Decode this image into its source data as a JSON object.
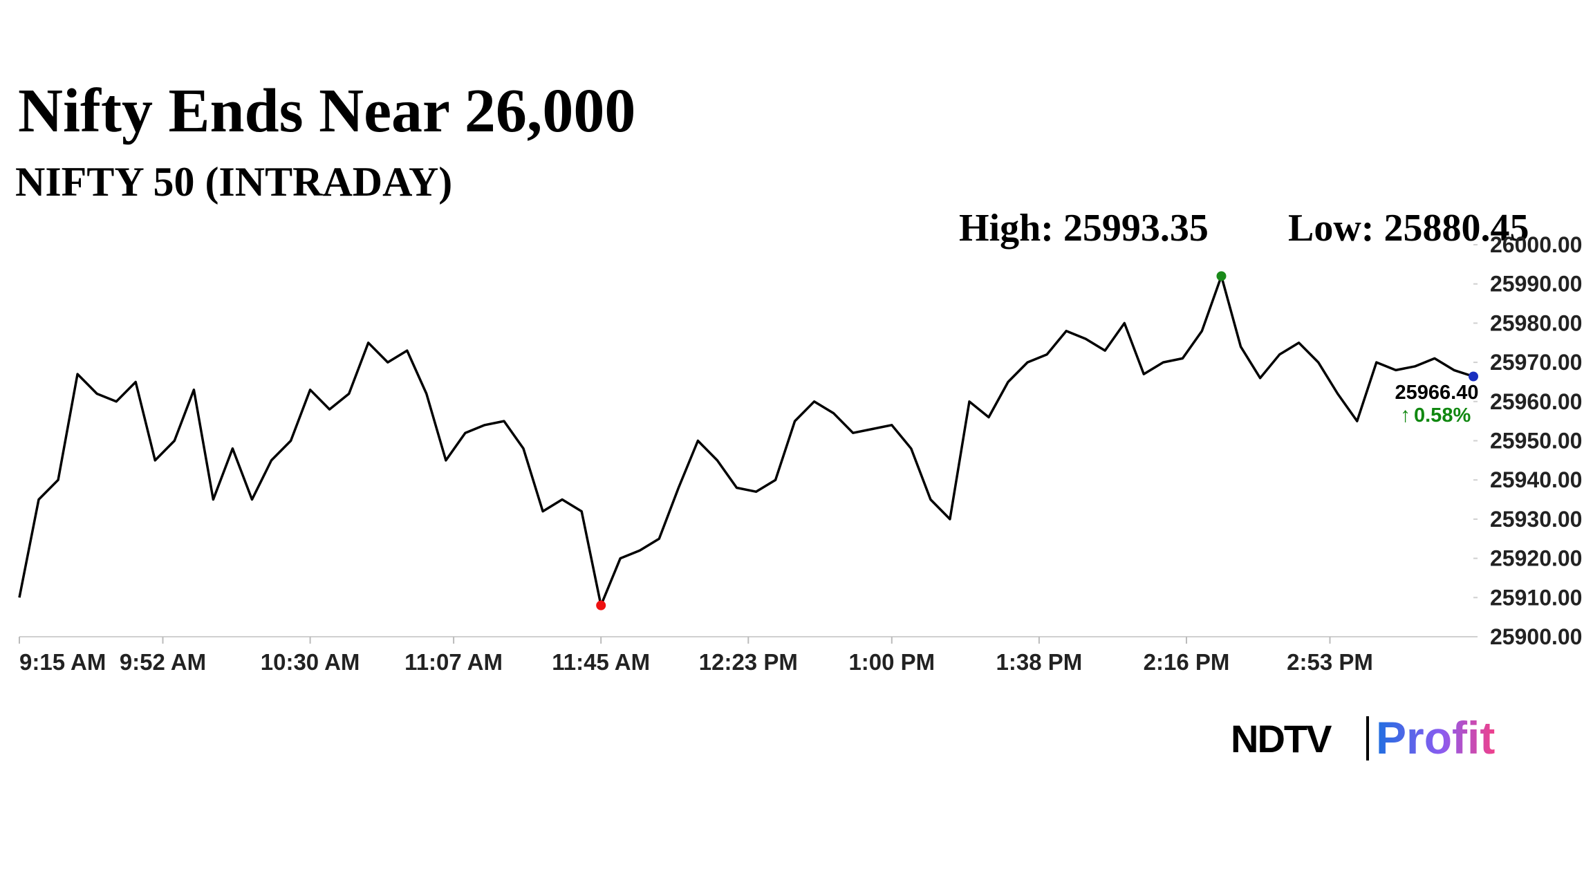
{
  "chart_data": {
    "type": "line",
    "title": "Nifty Ends Near 26,000",
    "subtitle": "NIFTY 50 (INTRADAY)",
    "high_label": "High: 25993.35",
    "low_label": "Low: 25880.45",
    "last_value_label": "25966.40",
    "change_label": "0.58%",
    "x": [
      "9:15 AM",
      "9:20 AM",
      "9:25 AM",
      "9:30 AM",
      "9:35 AM",
      "9:40 AM",
      "9:45 AM",
      "9:50 AM",
      "9:55 AM",
      "10:00 AM",
      "10:05 AM",
      "10:10 AM",
      "10:15 AM",
      "10:20 AM",
      "10:25 AM",
      "10:30 AM",
      "10:35 AM",
      "10:40 AM",
      "10:45 AM",
      "10:50 AM",
      "10:55 AM",
      "11:00 AM",
      "11:05 AM",
      "11:10 AM",
      "11:15 AM",
      "11:20 AM",
      "11:25 AM",
      "11:30 AM",
      "11:35 AM",
      "11:40 AM",
      "11:45 AM",
      "11:50 AM",
      "11:55 AM",
      "12:00 PM",
      "12:05 PM",
      "12:10 PM",
      "12:15 PM",
      "12:20 PM",
      "12:25 PM",
      "12:30 PM",
      "12:35 PM",
      "12:40 PM",
      "12:45 PM",
      "12:50 PM",
      "12:55 PM",
      "1:00 PM",
      "1:05 PM",
      "1:10 PM",
      "1:15 PM",
      "1:20 PM",
      "1:25 PM",
      "1:30 PM",
      "1:35 PM",
      "1:40 PM",
      "1:45 PM",
      "1:50 PM",
      "1:55 PM",
      "2:00 PM",
      "2:05 PM",
      "2:10 PM",
      "2:15 PM",
      "2:20 PM",
      "2:25 PM",
      "2:30 PM",
      "2:35 PM",
      "2:40 PM",
      "2:45 PM",
      "2:50 PM",
      "2:55 PM",
      "3:00 PM",
      "3:05 PM",
      "3:10 PM",
      "3:15 PM",
      "3:20 PM",
      "3:25 PM",
      "3:30 PM"
    ],
    "series": [
      {
        "name": "NIFTY 50",
        "color": "#000000",
        "values": [
          25910,
          25935,
          25940,
          25967,
          25962,
          25960,
          25965,
          25945,
          25950,
          25963,
          25935,
          25948,
          25935,
          25945,
          25950,
          25963,
          25958,
          25962,
          25975,
          25970,
          25973,
          25962,
          25945,
          25952,
          25954,
          25955,
          25948,
          25932,
          25935,
          25932,
          25908,
          25920,
          25922,
          25925,
          25938,
          25950,
          25945,
          25938,
          25937,
          25940,
          25955,
          25960,
          25957,
          25952,
          25953,
          25954,
          25948,
          25935,
          25930,
          25960,
          25956,
          25965,
          25970,
          25972,
          25978,
          25976,
          25973,
          25980,
          25967,
          25970,
          25971,
          25978,
          25992,
          25974,
          25966,
          25972,
          25975,
          25970,
          25962,
          25955,
          25970,
          25968,
          25969,
          25971,
          25968,
          25966.4
        ]
      }
    ],
    "xlim": [
      "9:15 AM",
      "3:30 PM"
    ],
    "xticks": [
      "9:15 AM",
      "9:52 AM",
      "10:30 AM",
      "11:07 AM",
      "11:45 AM",
      "12:23 PM",
      "1:00 PM",
      "1:38 PM",
      "2:16 PM",
      "2:53 PM"
    ],
    "ylim": [
      25900,
      26000
    ],
    "yticks": [
      {
        "value": 25900,
        "label": "25900.00"
      },
      {
        "value": 25910,
        "label": "25910.00"
      },
      {
        "value": 25920,
        "label": "25920.00"
      },
      {
        "value": 25930,
        "label": "25930.00"
      },
      {
        "value": 25940,
        "label": "25940.00"
      },
      {
        "value": 25950,
        "label": "25950.00"
      },
      {
        "value": 25960,
        "label": "25960.00"
      },
      {
        "value": 25970,
        "label": "25970.00"
      },
      {
        "value": 25980,
        "label": "25980.00"
      },
      {
        "value": 25990,
        "label": "25990.00"
      },
      {
        "value": 26000,
        "label": "26000.00"
      }
    ],
    "high_color": "#1a8a1a",
    "low_color": "#ee1111",
    "last_color": "#1a2fbf",
    "change_color": "#118811"
  },
  "logo": {
    "left": "NDTV",
    "right": "Profit"
  }
}
